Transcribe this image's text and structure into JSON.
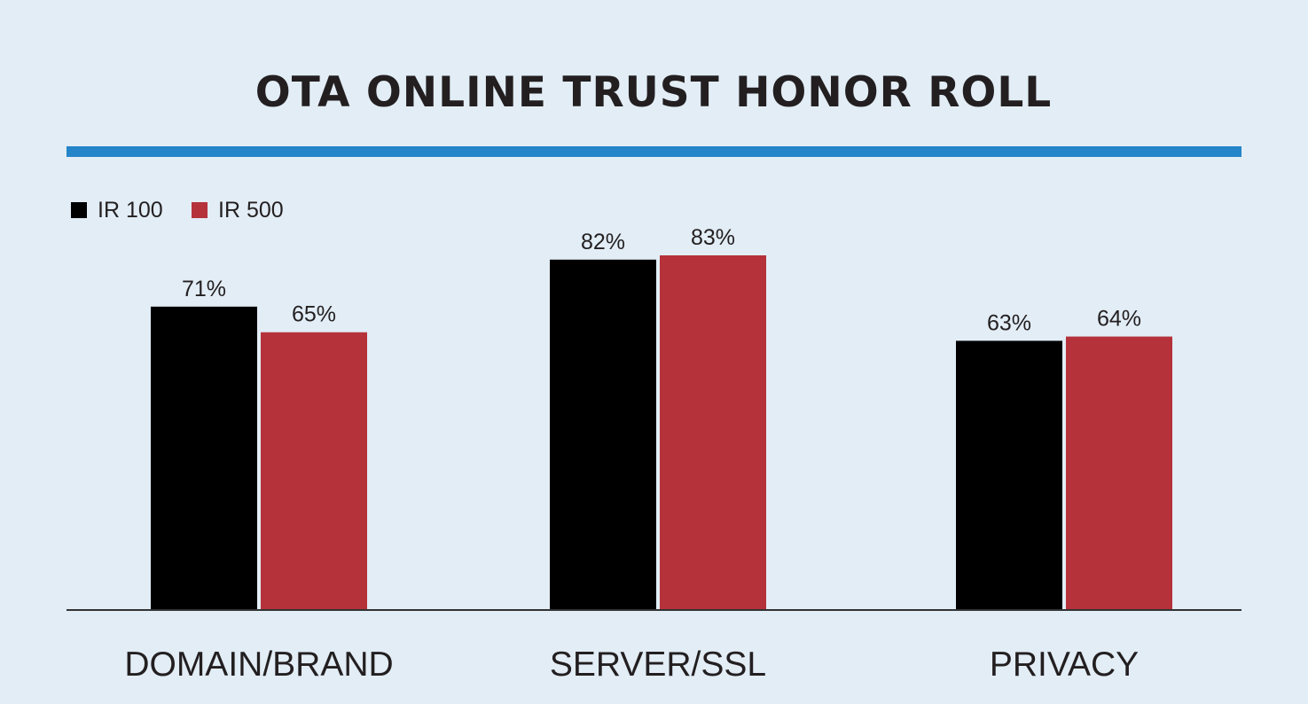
{
  "chart_data": {
    "type": "bar",
    "title": "OTA ONLINE TRUST HONOR ROLL",
    "xlabel": "",
    "ylabel": "",
    "ylim": [
      0,
      100
    ],
    "grid": false,
    "legend_position": "top-left",
    "categories": [
      "DOMAIN/BRAND",
      "SERVER/SSL",
      "PRIVACY"
    ],
    "series": [
      {
        "name": "IR 100",
        "color": "#000000",
        "values": [
          71,
          82,
          63
        ],
        "labels": [
          "71%",
          "82%",
          "63%"
        ]
      },
      {
        "name": "IR 500",
        "color": "#b5323a",
        "values": [
          65,
          83,
          64
        ],
        "labels": [
          "65%",
          "83%",
          "64%"
        ]
      }
    ],
    "accent_color": "#2485c8",
    "background_color": "#e2edf6"
  }
}
